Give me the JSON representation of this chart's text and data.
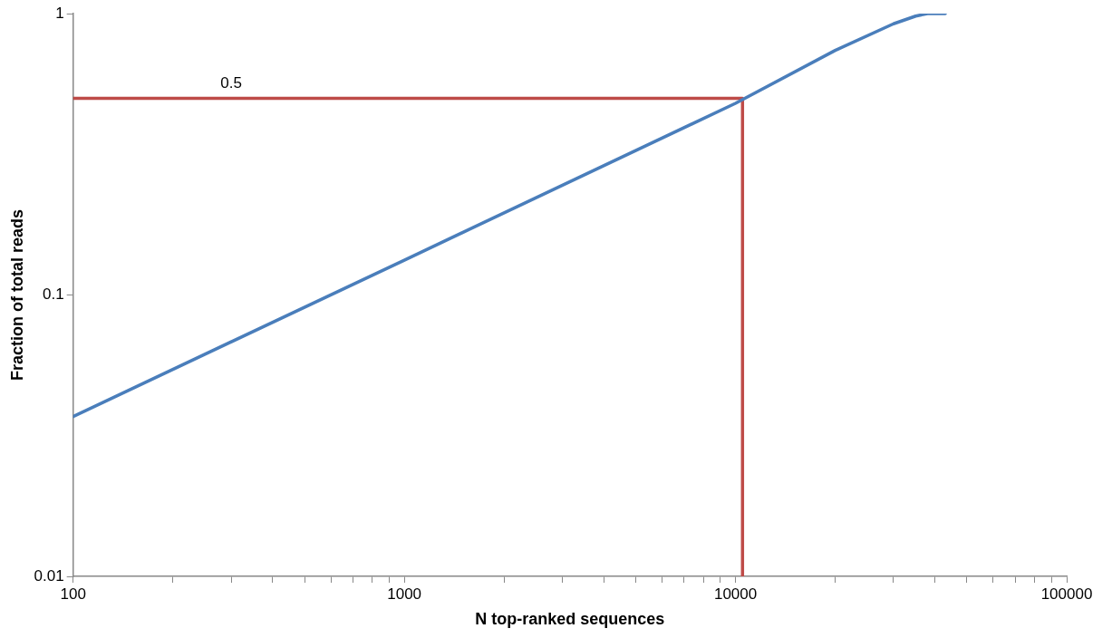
{
  "chart_data": {
    "type": "line",
    "xlabel": "N top-ranked sequences",
    "ylabel": "Fraction of total reads",
    "log": "xy",
    "grid": false,
    "legend": false,
    "marker": "none",
    "line_style": "solid",
    "xlim": [
      100,
      100000
    ],
    "ylim": [
      0.01,
      1
    ],
    "xticks": [
      100,
      {
        "value": 200,
        "label": null
      },
      {
        "value": 300,
        "label": null
      },
      {
        "value": 400,
        "label": null
      },
      {
        "value": 500,
        "label": null
      },
      {
        "value": 600,
        "label": null
      },
      {
        "value": 700,
        "label": null
      },
      {
        "value": 800,
        "label": null
      },
      {
        "value": 900,
        "label": null
      },
      1000,
      {
        "value": 2000,
        "label": null
      },
      {
        "value": 3000,
        "label": null
      },
      {
        "value": 4000,
        "label": null
      },
      {
        "value": 5000,
        "label": null
      },
      {
        "value": 6000,
        "label": null
      },
      {
        "value": 7000,
        "label": null
      },
      {
        "value": 8000,
        "label": null
      },
      {
        "value": 9000,
        "label": null
      },
      10000,
      {
        "value": 20000,
        "label": null
      },
      {
        "value": 30000,
        "label": null
      },
      {
        "value": 40000,
        "label": null
      },
      {
        "value": 50000,
        "label": null
      },
      {
        "value": 60000,
        "label": null
      },
      {
        "value": 70000,
        "label": null
      },
      {
        "value": 80000,
        "label": null
      },
      {
        "value": 90000,
        "label": null
      },
      100000
    ],
    "yticks": [
      0.01,
      0.1,
      1
    ],
    "series": [
      {
        "color": "#4a7ebb",
        "x": [
          100,
          1000,
          10000,
          20000,
          30000,
          35000,
          38000,
          43000
        ],
        "values": [
          0.037,
          0.133,
          0.48,
          0.74,
          0.92,
          0.98,
          1,
          1
        ]
      },
      {
        "color": "#be4b48",
        "x": [
          100,
          10500,
          10500
        ],
        "values": [
          0.5,
          0.5,
          0.01
        ]
      }
    ],
    "annotations": [
      {
        "text": "0.5",
        "x": 300,
        "y": 0.5
      }
    ]
  }
}
